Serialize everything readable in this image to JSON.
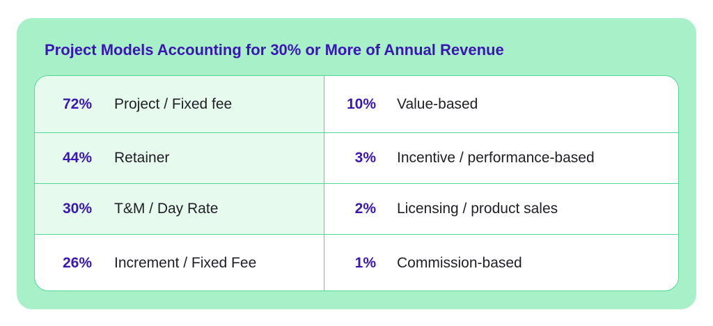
{
  "title": "Project Models Accounting for 30% or More of Annual Revenue",
  "colors": {
    "card_background": "#a8f1c8",
    "title_text": "#3a16b8",
    "percent_text": "#3a16b8",
    "highlight_row": "#e6faee",
    "border": "#4fd995"
  },
  "chart_data": {
    "type": "table",
    "title": "Project Models Accounting for 30% or More of Annual Revenue",
    "rows": [
      {
        "value": "72%",
        "label": "Project / Fixed fee"
      },
      {
        "value": "44%",
        "label": "Retainer"
      },
      {
        "value": "30%",
        "label": "T&M / Day Rate"
      },
      {
        "value": "26%",
        "label": "Increment / Fixed Fee"
      },
      {
        "value": "10%",
        "label": "Value-based"
      },
      {
        "value": "3%",
        "label": "Incentive / performance-based"
      },
      {
        "value": "2%",
        "label": "Licensing / product sales"
      },
      {
        "value": "1%",
        "label": "Commission-based"
      }
    ]
  }
}
